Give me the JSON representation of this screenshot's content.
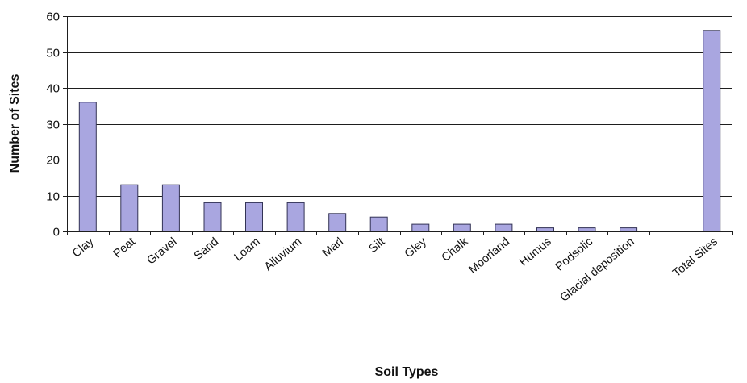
{
  "chart_data": {
    "type": "bar",
    "title": "",
    "xlabel": "Soil Types",
    "ylabel": "Number of Sites",
    "ylim": [
      0,
      60
    ],
    "yticks": [
      0,
      10,
      20,
      30,
      40,
      50,
      60
    ],
    "grid": true,
    "legend": "none",
    "bar_color": "#a9a6e0",
    "categories": [
      "Clay",
      "Peat",
      "Gravel",
      "Sand",
      "Loam",
      "Alluvium",
      "Marl",
      "Silt",
      "Gley",
      "Chalk",
      "Moorland",
      "Humus",
      "Podsolic",
      "Glacial deposition",
      "",
      "Total Sites"
    ],
    "values": [
      36,
      13,
      13,
      8,
      8,
      8,
      5,
      4,
      2,
      2,
      2,
      1,
      1,
      1,
      0,
      56
    ]
  }
}
